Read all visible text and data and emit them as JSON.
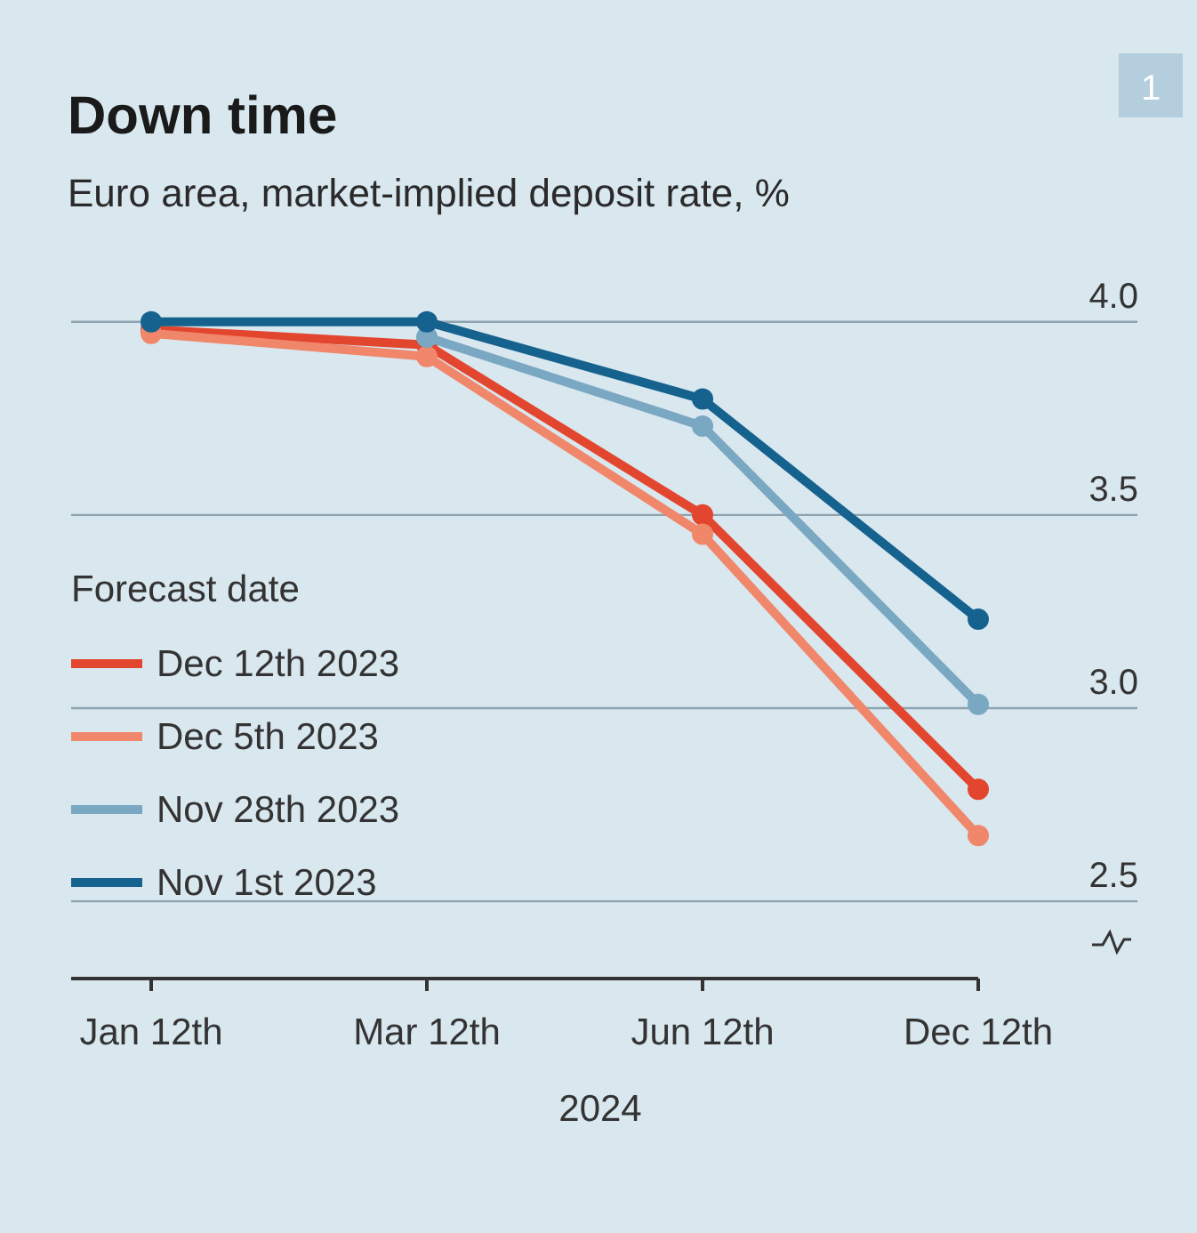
{
  "chart_data": {
    "type": "line",
    "title": "Down time",
    "subtitle": "Euro area, market-implied deposit rate, %",
    "xlabel": "2024",
    "legend_title": "Forecast date",
    "annotations": [
      "1"
    ],
    "categories": [
      "Jan 12th",
      "Mar 12th",
      "Jun 12th",
      "Dec 12th"
    ],
    "series": [
      {
        "name": "Dec 12th 2023",
        "color": "#e3462f",
        "values": [
          3.98,
          3.94,
          3.5,
          2.79
        ]
      },
      {
        "name": "Dec 5th 2023",
        "color": "#f0866a",
        "values": [
          3.97,
          3.91,
          3.45,
          2.67
        ]
      },
      {
        "name": "Nov 28th 2023",
        "color": "#7aa7c2",
        "values": [
          null,
          3.96,
          3.73,
          3.01
        ]
      },
      {
        "name": "Nov 1st 2023",
        "color": "#16628e",
        "values": [
          4.0,
          4.0,
          3.8,
          3.23
        ]
      }
    ],
    "ylim": [
      2.3,
      4.05
    ],
    "yticks": [
      {
        "value": 2.5,
        "label": "2.5"
      },
      {
        "value": 3,
        "label": "3.0"
      },
      {
        "value": 3.5,
        "label": "3.5"
      },
      {
        "value": 4,
        "label": "4.0"
      }
    ],
    "grid": "y",
    "legend": "left",
    "marker": "circle",
    "line_style": "solid"
  }
}
